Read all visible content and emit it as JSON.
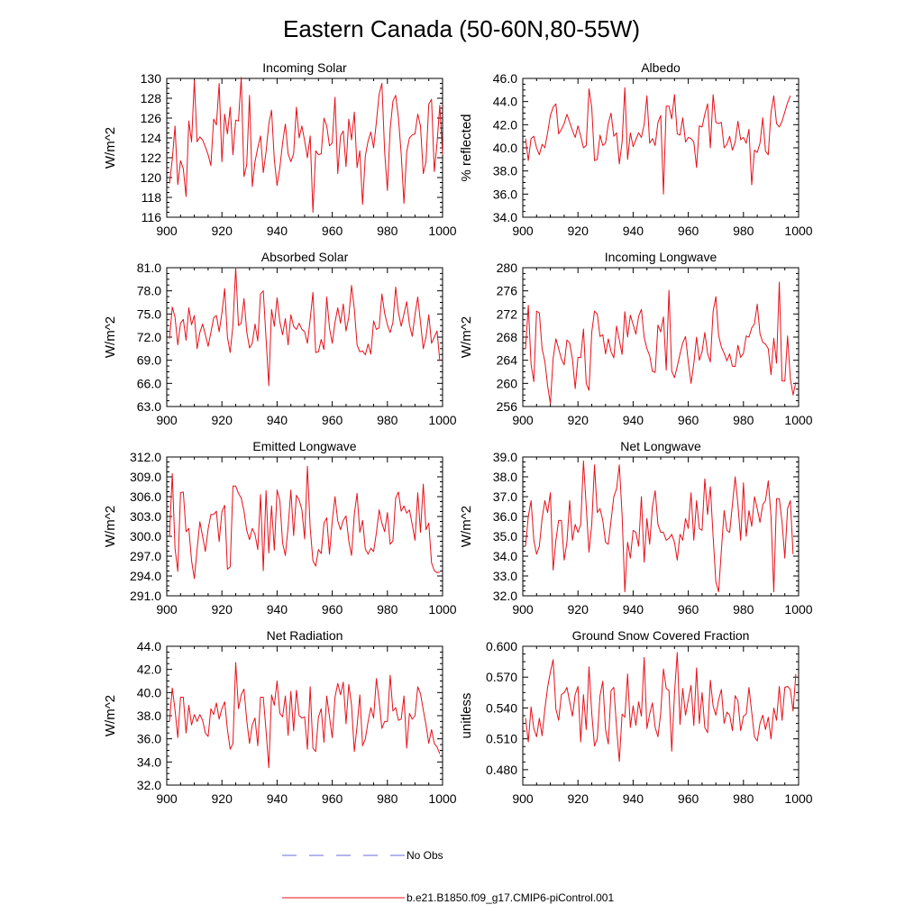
{
  "figure": {
    "title": "Eastern Canada (50-60N,80-55W)",
    "series_color": "#e8101a",
    "obs_color": "#6a6ad8",
    "axis_color": "#000000"
  },
  "legend": {
    "items": [
      {
        "label": "No Obs",
        "style": "dashed",
        "color": "#6a6ad8"
      },
      {
        "label": "b.e21.B1850.f09_g17.CMIP6-piControl.001",
        "style": "solid",
        "color": "#e8101a"
      }
    ]
  },
  "chart_data": [
    {
      "type": "line",
      "title": "Incoming Solar",
      "ylabel": "W/m^2",
      "xlim": [
        900,
        1000
      ],
      "xticks": [
        900,
        920,
        940,
        960,
        980,
        1000
      ],
      "ylim": [
        116,
        130
      ],
      "yticks": [
        116,
        118,
        120,
        122,
        124,
        126,
        128,
        130
      ],
      "ytick_labels": [
        "116",
        "118",
        "120",
        "122",
        "124",
        "126",
        "128",
        "130"
      ],
      "x_start": 901,
      "values": [
        119.4,
        121.8,
        125.2,
        119.3,
        121.7,
        120.9,
        118.1,
        125.7,
        123.6,
        129.8,
        123.6,
        124.1,
        123.8,
        123.1,
        122.3,
        121.2,
        125.9,
        125.3,
        129.5,
        121.6,
        126.4,
        124.4,
        127.1,
        122.3,
        125.8,
        125.7,
        130.1,
        120.1,
        121.3,
        128.3,
        119.1,
        121.6,
        123.0,
        124.2,
        120.5,
        122.6,
        125.4,
        126.8,
        121.8,
        119.2,
        121.0,
        123.5,
        125.4,
        122.4,
        121.6,
        122.4,
        127.1,
        124.0,
        125.2,
        123.7,
        122.0,
        124.2,
        116.5,
        122.7,
        122.3,
        122.4,
        126.0,
        125.2,
        123.2,
        123.5,
        128.1,
        120.4,
        124.2,
        124.7,
        121.1,
        125.9,
        123.8,
        126.6,
        121.0,
        122.7,
        117.3,
        122.2,
        123.7,
        124.6,
        123.0,
        125.6,
        128.4,
        129.5,
        122.6,
        118.7,
        124.9,
        127.7,
        128.3,
        126.0,
        122.4,
        117.4,
        122.6,
        124.0,
        124.3,
        124.4,
        126.4,
        125.2,
        120.4,
        121.6,
        127.4,
        127.9,
        120.6,
        123.5,
        127.3,
        122.3
      ]
    },
    {
      "type": "line",
      "title": "Albedo",
      "ylabel": "% reflected",
      "xlim": [
        900,
        1000
      ],
      "xticks": [
        900,
        920,
        940,
        960,
        980,
        1000
      ],
      "ylim": [
        34,
        46
      ],
      "yticks": [
        34,
        36,
        38,
        40,
        42,
        44,
        46
      ],
      "ytick_labels": [
        "34.0",
        "36.0",
        "38.0",
        "40.0",
        "42.0",
        "44.0",
        "46.0"
      ],
      "x_start": 901,
      "values": [
        40.8,
        38.9,
        40.8,
        41.0,
        40.0,
        39.4,
        40.3,
        40.0,
        41.3,
        42.8,
        43.5,
        43.8,
        41.2,
        41.6,
        42.1,
        42.9,
        42.2,
        41.5,
        40.9,
        41.9,
        41.0,
        40.0,
        40.2,
        45.1,
        43.5,
        38.9,
        39.0,
        41.1,
        40.2,
        40.4,
        42.1,
        43.0,
        41.0,
        41.3,
        38.6,
        40.5,
        45.2,
        39.0,
        41.3,
        40.1,
        40.7,
        41.3,
        40.9,
        42.0,
        44.5,
        40.4,
        40.8,
        40.2,
        42.2,
        42.8,
        36.0,
        43.6,
        43.6,
        42.5,
        44.6,
        41.2,
        41.1,
        42.6,
        40.5,
        40.9,
        40.8,
        40.5,
        38.3,
        41.9,
        41.8,
        42.9,
        43.8,
        40.0,
        44.6,
        42.2,
        42.1,
        42.2,
        40.0,
        40.3,
        41.0,
        39.8,
        40.5,
        42.3,
        40.7,
        40.9,
        40.4,
        41.6,
        36.8,
        39.8,
        39.6,
        40.4,
        42.6,
        39.7,
        39.4,
        43.1,
        44.5,
        42.1,
        41.8,
        42.3,
        43.1,
        43.9,
        44.5
      ]
    },
    {
      "type": "line",
      "title": "Absorbed Solar",
      "ylabel": "W/m^2",
      "xlim": [
        900,
        1000
      ],
      "xticks": [
        900,
        920,
        940,
        960,
        980,
        1000
      ],
      "ylim": [
        63,
        81
      ],
      "yticks": [
        63,
        66,
        69,
        72,
        75,
        78,
        81
      ],
      "ytick_labels": [
        "63.0",
        "66.0",
        "69.0",
        "72.0",
        "75.0",
        "78.0",
        "81.0"
      ],
      "x_start": 901,
      "values": [
        71.8,
        75.9,
        74.6,
        71.0,
        73.8,
        74.3,
        71.6,
        75.8,
        73.6,
        74.8,
        70.5,
        72.6,
        73.7,
        72.3,
        70.8,
        72.6,
        74.5,
        74.8,
        72.7,
        75.1,
        78.3,
        72.0,
        70.0,
        73.6,
        81.0,
        73.5,
        73.8,
        77.0,
        72.7,
        70.6,
        71.2,
        73.7,
        71.5,
        77.6,
        78.0,
        71.8,
        65.7,
        75.6,
        73.4,
        77.1,
        74.0,
        72.3,
        74.4,
        71.0,
        74.9,
        73.4,
        73.0,
        73.8,
        73.0,
        72.7,
        71.2,
        74.3,
        77.8,
        70.0,
        70.1,
        71.7,
        70.4,
        77.2,
        73.2,
        71.2,
        73.9,
        75.8,
        73.8,
        76.3,
        72.8,
        74.6,
        78.7,
        75.7,
        71.0,
        70.1,
        70.2,
        69.7,
        71.1,
        69.8,
        74.1,
        73.0,
        73.2,
        77.6,
        75.1,
        73.6,
        72.6,
        73.9,
        78.5,
        75.2,
        73.4,
        75.0,
        76.6,
        73.6,
        72.1,
        74.9,
        77.2,
        73.9,
        70.5,
        72.0,
        74.9,
        71.2,
        72.0,
        72.8,
        68.9
      ]
    },
    {
      "type": "line",
      "title": "Incoming Longwave",
      "ylabel": "W/m^2",
      "xlim": [
        900,
        1000
      ],
      "xticks": [
        900,
        920,
        940,
        960,
        980,
        1000
      ],
      "ylim": [
        256,
        280
      ],
      "yticks": [
        256,
        260,
        264,
        268,
        272,
        276,
        280
      ],
      "ytick_labels": [
        "256",
        "260",
        "264",
        "268",
        "272",
        "276",
        "280"
      ],
      "x_start": 901,
      "values": [
        266.0,
        273.5,
        263.3,
        260.3,
        272.5,
        272.2,
        266.0,
        263.8,
        259.6,
        256.5,
        264.3,
        267.7,
        266.0,
        264.2,
        263.2,
        267.5,
        267.0,
        264.2,
        259.1,
        264.5,
        264.5,
        269.4,
        260.0,
        258.8,
        268.8,
        272.5,
        272.0,
        268.1,
        268.4,
        265.1,
        267.7,
        265.5,
        264.4,
        269.9,
        267.5,
        265.0,
        272.4,
        268.0,
        271.8,
        270.2,
        268.5,
        271.6,
        272.8,
        268.0,
        266.0,
        264.8,
        262.1,
        261.9,
        270.1,
        268.9,
        271.5,
        262.3,
        276.1,
        262.1,
        261.0,
        262.9,
        265.1,
        267.0,
        268.1,
        263.7,
        260.0,
        263.4,
        268.0,
        264.0,
        265.5,
        268.8,
        265.2,
        263.7,
        272.4,
        275.0,
        268.3,
        266.3,
        265.2,
        263.9,
        265.1,
        263.0,
        262.9,
        266.6,
        264.5,
        265.2,
        268.2,
        268.0,
        269.6,
        270.3,
        273.7,
        268.6,
        267.1,
        266.8,
        266.0,
        261.5,
        267.8,
        263.5,
        277.5,
        260.4,
        260.4,
        268.2,
        260.8,
        258.0,
        260.2
      ]
    },
    {
      "type": "line",
      "title": "Emitted Longwave",
      "ylabel": "W/m^2",
      "xlim": [
        900,
        1000
      ],
      "xticks": [
        900,
        920,
        940,
        960,
        980,
        1000
      ],
      "ylim": [
        291,
        312
      ],
      "yticks": [
        291,
        294,
        297,
        300,
        303,
        306,
        309,
        312
      ],
      "ytick_labels": [
        "291.0",
        "294.0",
        "297.0",
        "300.0",
        "303.0",
        "306.0",
        "309.0",
        "312.0"
      ],
      "x_start": 901,
      "values": [
        300.1,
        309.5,
        298.2,
        294.7,
        306.6,
        306.7,
        300.7,
        301.2,
        296.3,
        293.6,
        298.0,
        302.2,
        300.0,
        297.7,
        301.1,
        303.3,
        303.3,
        303.8,
        299.2,
        303.7,
        304.7,
        295.0,
        295.4,
        307.6,
        307.6,
        306.5,
        305.8,
        303.8,
        300.9,
        299.5,
        301.2,
        300.3,
        298.0,
        306.3,
        294.8,
        306.9,
        297.5,
        304.6,
        297.9,
        307.0,
        305.4,
        299.0,
        297.1,
        301.4,
        307.0,
        300.1,
        306.2,
        305.5,
        304.0,
        299.6,
        310.6,
        301.3,
        296.3,
        295.5,
        298.0,
        297.4,
        302.0,
        302.8,
        297.3,
        302.3,
        306.0,
        302.3,
        301.0,
        302.4,
        303.1,
        299.3,
        297.1,
        303.3,
        306.5,
        300.6,
        302.4,
        298.1,
        297.3,
        298.2,
        297.7,
        300.5,
        304.0,
        302.0,
        300.7,
        303.6,
        298.8,
        299.3,
        305.8,
        306.7,
        303.8,
        304.6,
        303.5,
        304.0,
        301.8,
        299.4,
        306.6,
        300.6,
        307.9,
        301.0,
        302.0,
        296.0,
        294.8,
        294.5,
        294.6
      ]
    },
    {
      "type": "line",
      "title": "Net Longwave",
      "ylabel": "W/m^2",
      "xlim": [
        900,
        1000
      ],
      "xticks": [
        900,
        920,
        940,
        960,
        980,
        1000
      ],
      "ylim": [
        32,
        39
      ],
      "yticks": [
        32,
        33,
        34,
        35,
        36,
        37,
        38,
        39
      ],
      "ytick_labels": [
        "32.0",
        "33.0",
        "34.0",
        "35.0",
        "36.0",
        "37.0",
        "38.0",
        "39.0"
      ],
      "x_start": 901,
      "values": [
        34.5,
        36.0,
        36.8,
        34.8,
        34.1,
        34.5,
        35.9,
        36.8,
        36.2,
        37.2,
        33.3,
        34.8,
        35.8,
        35.8,
        33.8,
        34.7,
        36.8,
        34.8,
        35.6,
        35.2,
        35.6,
        38.8,
        36.5,
        34.2,
        35.6,
        38.6,
        36.2,
        36.4,
        35.8,
        34.7,
        34.6,
        35.8,
        37.0,
        37.4,
        38.6,
        36.1,
        32.2,
        34.7,
        33.9,
        35.3,
        35.2,
        34.5,
        37.0,
        33.7,
        35.9,
        34.6,
        36.5,
        37.3,
        35.6,
        35.2,
        35.2,
        34.8,
        34.9,
        35.1,
        34.7,
        33.8,
        35.1,
        34.8,
        35.9,
        35.4,
        37.2,
        34.8,
        36.8,
        35.4,
        35.3,
        37.9,
        36.1,
        37.5,
        35.0,
        32.7,
        32.2,
        34.3,
        36.3,
        35.3,
        35.2,
        36.6,
        38.0,
        36.6,
        34.8,
        37.7,
        35.0,
        36.3,
        35.5,
        37.0,
        36.4,
        35.7,
        36.6,
        36.8,
        37.8,
        36.0,
        32.2,
        36.9,
        36.9,
        35.7,
        33.9,
        36.4,
        36.8,
        34.1
      ]
    },
    {
      "type": "line",
      "title": "Net Radiation",
      "ylabel": "W/m^2",
      "xlim": [
        900,
        1000
      ],
      "xticks": [
        900,
        920,
        940,
        960,
        980,
        1000
      ],
      "ylim": [
        32,
        44
      ],
      "yticks": [
        32,
        34,
        36,
        38,
        40,
        42,
        44
      ],
      "ytick_labels": [
        "32.0",
        "34.0",
        "36.0",
        "38.0",
        "40.0",
        "42.0",
        "44.0"
      ],
      "x_start": 901,
      "values": [
        37.5,
        40.4,
        38.5,
        36.1,
        39.6,
        39.6,
        36.5,
        38.9,
        37.2,
        38.1,
        37.5,
        38.1,
        37.6,
        36.5,
        36.2,
        38.6,
        38.1,
        39.1,
        37.7,
        38.6,
        39.2,
        36.8,
        35.1,
        35.6,
        42.6,
        38.6,
        39.8,
        40.3,
        37.6,
        35.6,
        37.2,
        37.8,
        35.4,
        39.6,
        39.6,
        36.7,
        33.5,
        39.8,
        38.9,
        41.0,
        38.2,
        37.9,
        39.7,
        36.3,
        40.1,
        36.7,
        40.2,
        38.0,
        37.8,
        37.9,
        35.1,
        40.5,
        35.2,
        34.9,
        37.9,
        38.6,
        35.7,
        39.7,
        37.9,
        36.1,
        39.6,
        40.8,
        39.8,
        40.9,
        37.3,
        40.7,
        38.9,
        34.9,
        37.1,
        39.8,
        35.4,
        36.0,
        37.5,
        38.7,
        37.8,
        41.2,
        39.3,
        36.9,
        37.5,
        37.5,
        41.5,
        38.4,
        38.7,
        37.6,
        37.7,
        39.7,
        35.2,
        38.2,
        37.7,
        38.0,
        40.5,
        39.9,
        38.5,
        37.2,
        35.6,
        36.8,
        35.6,
        35.3,
        34.7
      ]
    },
    {
      "type": "line",
      "title": "Ground Snow Covered Fraction",
      "ylabel": "unitless",
      "xlim": [
        900,
        1000
      ],
      "xticks": [
        900,
        920,
        940,
        960,
        980,
        1000
      ],
      "ylim": [
        0.465,
        0.6
      ],
      "yticks": [
        0.48,
        0.51,
        0.54,
        0.57,
        0.6
      ],
      "ytick_labels": [
        "0.480",
        "0.510",
        "0.540",
        "0.570",
        "0.600"
      ],
      "x_start": 901,
      "values": [
        0.53,
        0.507,
        0.541,
        0.52,
        0.512,
        0.53,
        0.513,
        0.539,
        0.56,
        0.575,
        0.587,
        0.539,
        0.528,
        0.553,
        0.555,
        0.56,
        0.546,
        0.532,
        0.553,
        0.561,
        0.507,
        0.553,
        0.519,
        0.58,
        0.535,
        0.503,
        0.51,
        0.552,
        0.566,
        0.519,
        0.505,
        0.557,
        0.56,
        0.521,
        0.488,
        0.534,
        0.531,
        0.573,
        0.521,
        0.542,
        0.523,
        0.546,
        0.532,
        0.589,
        0.52,
        0.534,
        0.545,
        0.521,
        0.512,
        0.535,
        0.578,
        0.559,
        0.557,
        0.498,
        0.554,
        0.594,
        0.524,
        0.559,
        0.533,
        0.548,
        0.562,
        0.523,
        0.579,
        0.525,
        0.555,
        0.521,
        0.516,
        0.567,
        0.542,
        0.533,
        0.548,
        0.558,
        0.525,
        0.536,
        0.533,
        0.518,
        0.552,
        0.547,
        0.518,
        0.532,
        0.534,
        0.56,
        0.536,
        0.512,
        0.508,
        0.525,
        0.533,
        0.519,
        0.531,
        0.51,
        0.54,
        0.528,
        0.561,
        0.528,
        0.56,
        0.561,
        0.558,
        0.537,
        0.573
      ]
    }
  ]
}
